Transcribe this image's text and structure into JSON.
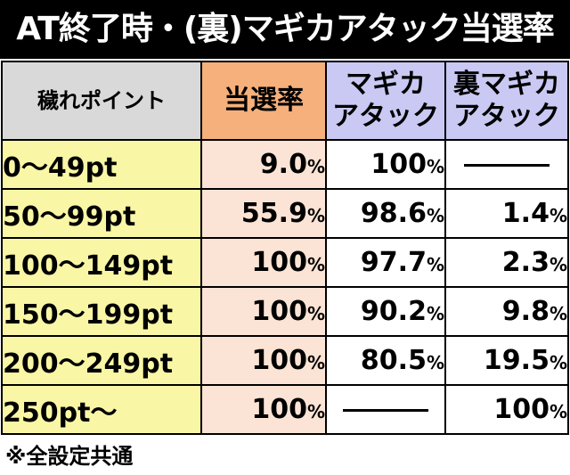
{
  "title": "AT終了時・(裏)マギカアタック当選率",
  "headers": {
    "point": "穢れポイント",
    "rate": "当選率",
    "magika_line1": "マギカ",
    "magika_line2": "アタック",
    "ura_line1": "裏マギカ",
    "ura_line2": "アタック"
  },
  "percent_sign": "%",
  "rows": [
    {
      "point": "0〜49pt",
      "rate": "9.0",
      "magika": "100",
      "ura": ""
    },
    {
      "point": "50〜99pt",
      "rate": "55.9",
      "magika": "98.6",
      "ura": "1.4"
    },
    {
      "point": "100〜149pt",
      "rate": "100",
      "magika": "97.7",
      "ura": "2.3"
    },
    {
      "point": "150〜199pt",
      "rate": "100",
      "magika": "90.2",
      "ura": "9.8"
    },
    {
      "point": "200〜249pt",
      "rate": "100",
      "magika": "80.5",
      "ura": "19.5"
    },
    {
      "point": "250pt〜",
      "rate": "100",
      "magika": "",
      "ura": "100"
    }
  ],
  "footnote": "※全設定共通"
}
